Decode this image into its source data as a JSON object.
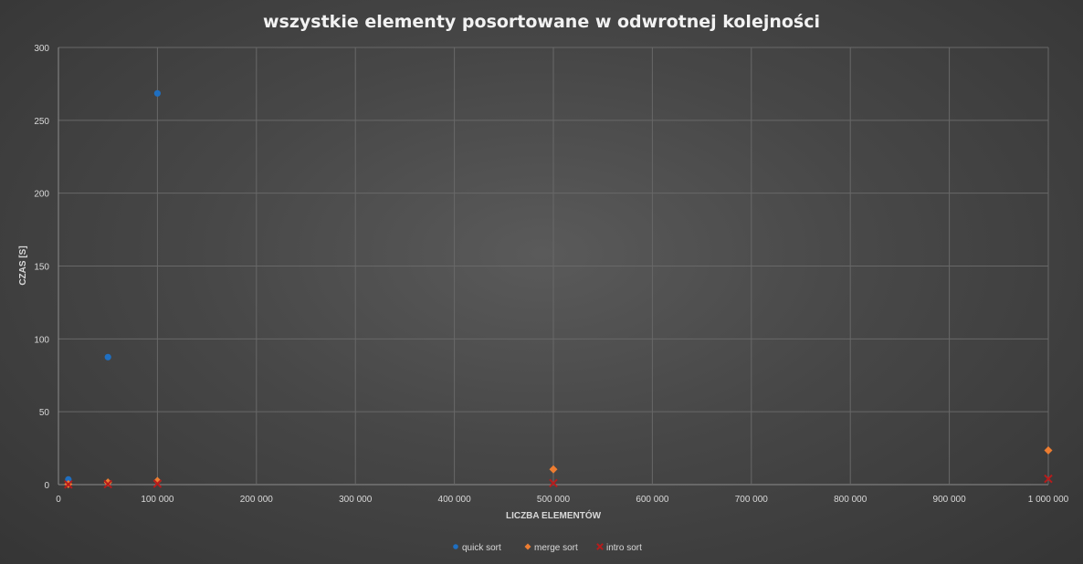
{
  "chart_data": {
    "type": "scatter",
    "title": "wszystkie elementy posortowane w odwrotnej kolejności",
    "xlabel": "LICZBA ELEMENTÓW",
    "ylabel": "CZAS [S]",
    "xlim": [
      0,
      1000000
    ],
    "ylim": [
      0,
      300
    ],
    "x_ticks": [
      0,
      100000,
      200000,
      300000,
      400000,
      500000,
      600000,
      700000,
      800000,
      900000,
      1000000
    ],
    "x_tick_labels": [
      "0",
      "100 000",
      "200 000",
      "300 000",
      "400 000",
      "500 000",
      "600 000",
      "700 000",
      "800 000",
      "900 000",
      "1 000 000"
    ],
    "y_ticks": [
      0,
      50,
      100,
      150,
      200,
      250,
      300
    ],
    "y_tick_labels": [
      "0",
      "50",
      "100",
      "150",
      "200",
      "250",
      "300"
    ],
    "grid": true,
    "legend_position": "bottom",
    "series": [
      {
        "name": "quick sort",
        "marker": "circle",
        "color": "#1f6fc1",
        "points": [
          [
            10000,
            3.5
          ],
          [
            50000,
            87.5
          ],
          [
            100000,
            268.5
          ]
        ]
      },
      {
        "name": "merge sort",
        "marker": "diamond",
        "color": "#ed7d31",
        "points": [
          [
            10000,
            0.3
          ],
          [
            50000,
            1.5
          ],
          [
            100000,
            2.5
          ],
          [
            500000,
            10.5
          ],
          [
            1000000,
            23.5
          ]
        ]
      },
      {
        "name": "intro sort",
        "marker": "x",
        "color": "#b71c1c",
        "points": [
          [
            10000,
            0.1
          ],
          [
            50000,
            0.3
          ],
          [
            100000,
            0.6
          ],
          [
            500000,
            1.0
          ],
          [
            1000000,
            4.0
          ]
        ]
      }
    ]
  }
}
